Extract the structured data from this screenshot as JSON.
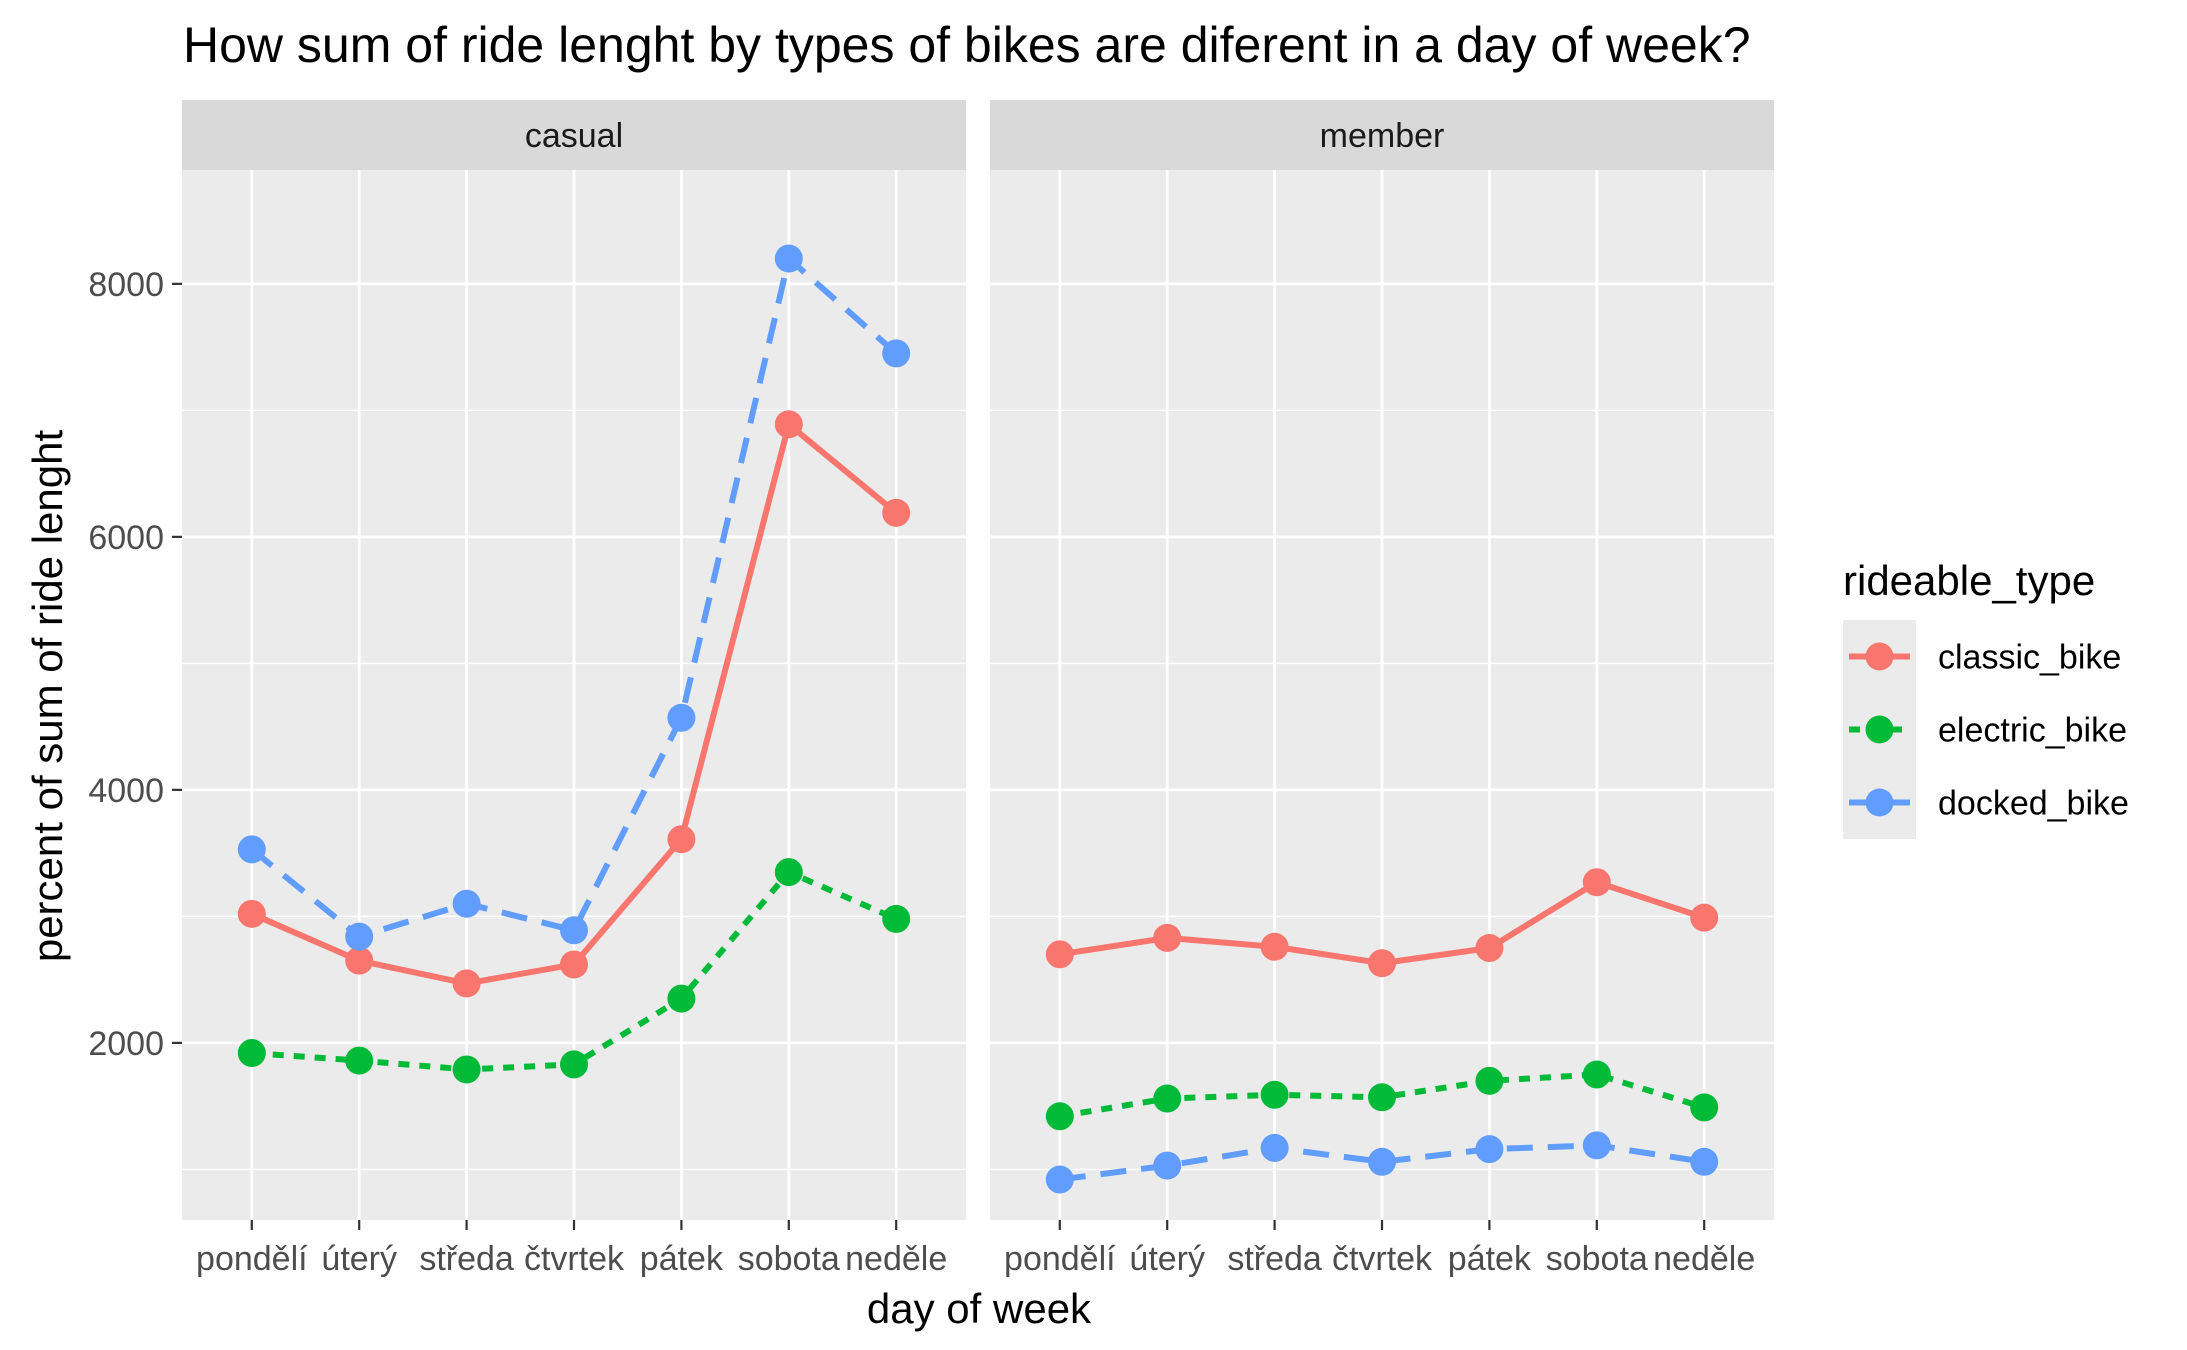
{
  "chart_data": {
    "type": "line",
    "title": "How sum of ride lenght by types of bikes are diferent in a day of week?",
    "xlabel": "day of week",
    "ylabel": "percent of sum of ride lenght",
    "categories": [
      "pondělí",
      "úterý",
      "středa",
      "čtvrtek",
      "pátek",
      "sobota",
      "neděle"
    ],
    "ylim": [
      600,
      8900
    ],
    "y_ticks": [
      2000,
      4000,
      6000,
      8000
    ],
    "grid": true,
    "legend": {
      "title": "rideable_type",
      "position": "right",
      "entries": [
        {
          "name": "classic_bike",
          "color": "#F8766D",
          "dash": "solid"
        },
        {
          "name": "electric_bike",
          "color": "#00BA38",
          "dash": "dotted"
        },
        {
          "name": "docked_bike",
          "color": "#619CFF",
          "dash": "dashed"
        }
      ]
    },
    "facets": [
      {
        "label": "casual",
        "series": [
          {
            "name": "classic_bike",
            "values": [
              3020,
              2650,
              2470,
              2620,
              3610,
              6890,
              6190
            ]
          },
          {
            "name": "electric_bike",
            "values": [
              1920,
              1860,
              1790,
              1830,
              2350,
              3350,
              2980
            ]
          },
          {
            "name": "docked_bike",
            "values": [
              3530,
              2840,
              3100,
              2890,
              4570,
              8200,
              7450
            ]
          }
        ]
      },
      {
        "label": "member",
        "series": [
          {
            "name": "classic_bike",
            "values": [
              2700,
              2830,
              2760,
              2630,
              2750,
              3270,
              2990
            ]
          },
          {
            "name": "electric_bike",
            "values": [
              1420,
              1560,
              1590,
              1570,
              1700,
              1750,
              1490
            ]
          },
          {
            "name": "docked_bike",
            "values": [
              920,
              1030,
              1170,
              1060,
              1160,
              1190,
              1060
            ]
          }
        ]
      }
    ]
  }
}
